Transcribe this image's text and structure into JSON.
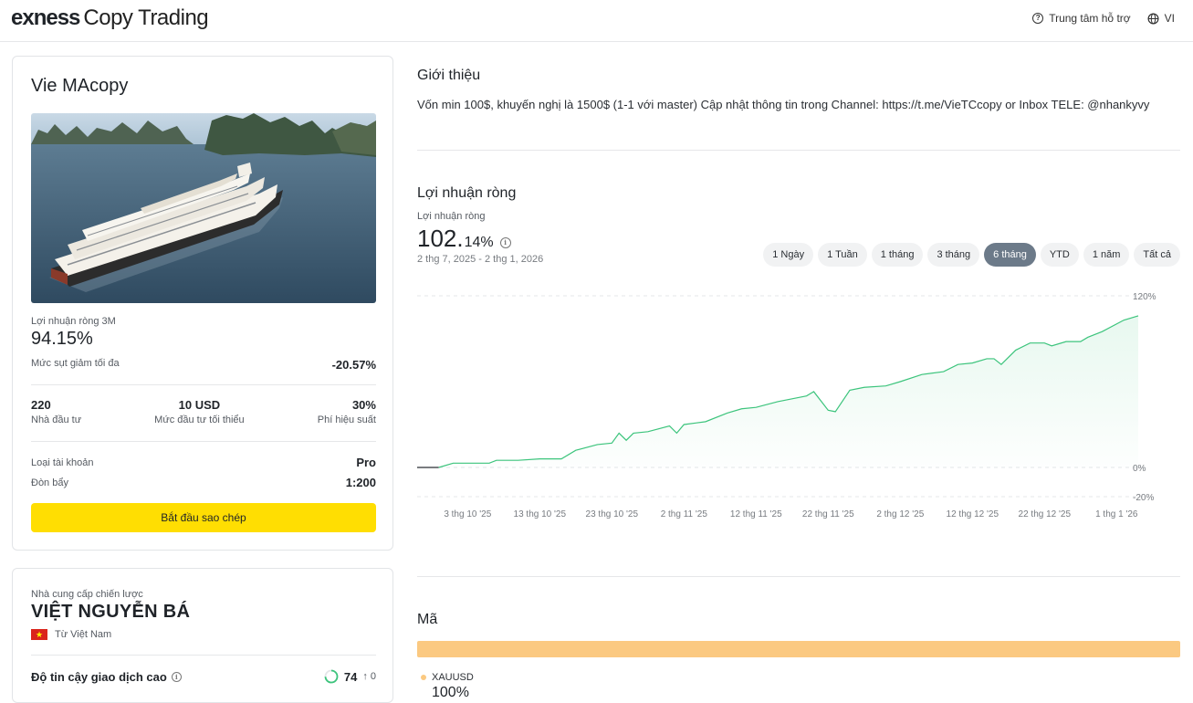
{
  "header": {
    "brand": "exness",
    "product": "Copy Trading",
    "help_label": "Trung tâm hỗ trợ",
    "lang_label": "VI"
  },
  "strategy": {
    "title": "Vie MAcopy",
    "profit_3m_label": "Lợi nhuận ròng 3M",
    "profit_3m_value": "94.15%",
    "drawdown_label": "Mức sụt giảm tối đa",
    "drawdown_value": "-20.57%",
    "investors_value": "220",
    "investors_label": "Nhà đầu tư",
    "min_invest_value": "10 USD",
    "min_invest_label": "Mức đầu tư tối thiểu",
    "fee_value": "30%",
    "fee_label": "Phí hiệu suất",
    "account_type_label": "Loại tài khoản",
    "account_type_value": "Pro",
    "leverage_label": "Đòn bẩy",
    "leverage_value": "1:200",
    "cta_label": "Bắt đầu sao chép"
  },
  "provider": {
    "label": "Nhà cung cấp chiến lược",
    "name": "VIỆT NGUYỄN BÁ",
    "country": "Từ Việt Nam",
    "trust_label": "Độ tin cậy giao dịch cao",
    "trust_score": "74",
    "trust_delta": "0",
    "trust_fraction": 0.74
  },
  "intro": {
    "title": "Giới thiệu",
    "text": "Vốn min 100$, khuyến nghị là 1500$ (1-1 với master) Cập nhật thông tin trong Channel: https://t.me/VieTCcopy or Inbox TELE: @nhankyvy"
  },
  "net_profit": {
    "title": "Lợi nhuận ròng",
    "small_label": "Lợi nhuận ròng",
    "value_int": "102.",
    "value_dec": "14%",
    "range": "2 thg 7, 2025 - 2 thg 1, 2026",
    "periods": [
      "1 Ngày",
      "1 Tuần",
      "1 tháng",
      "3 tháng",
      "6 tháng",
      "YTD",
      "1 năm",
      "Tất cả"
    ],
    "active_period": "6 tháng"
  },
  "chart_data": {
    "type": "area",
    "y_ticks": [
      "120%",
      "0%",
      "-20%"
    ],
    "ylim": [
      -20,
      120
    ],
    "x_tick_labels": [
      "3 thg 10 '25",
      "13 thg 10 '25",
      "23 thg 10 '25",
      "2 thg 11 '25",
      "12 thg 11 '25",
      "22 thg 11 '25",
      "2 thg 12 '25",
      "12 thg 12 '25",
      "22 thg 12 '25",
      "1 thg 1 '26"
    ],
    "x_tick_days": [
      7,
      17,
      27,
      37,
      47,
      57,
      67,
      77,
      87,
      97
    ],
    "series": [
      {
        "color": "#3cc47c",
        "x_days": [
          0,
          3,
          5,
          7,
          10,
          11,
          14,
          17,
          20,
          22,
          25,
          27,
          28,
          29,
          30,
          32,
          35,
          36,
          37,
          40,
          43,
          45,
          47,
          50,
          52,
          54,
          55,
          57,
          58,
          60,
          62,
          65,
          67,
          70,
          73,
          75,
          77,
          79,
          80,
          81,
          83,
          85,
          87,
          88,
          90,
          92,
          93,
          95,
          98,
          100
        ],
        "values": [
          0,
          0,
          3,
          3,
          3,
          5,
          5,
          6,
          6,
          12,
          16,
          17,
          24,
          19,
          24,
          25,
          29,
          24,
          30,
          32,
          38,
          41,
          42,
          46,
          48,
          50,
          53,
          40,
          39,
          54,
          56,
          57,
          60,
          65,
          67,
          72,
          73,
          76,
          76,
          72,
          82,
          87,
          87,
          85,
          88,
          88,
          91,
          95,
          103,
          106
        ]
      }
    ]
  },
  "code": {
    "title": "Mã",
    "symbol": "XAUUSD",
    "percent": "100%",
    "color": "#fbc981"
  }
}
